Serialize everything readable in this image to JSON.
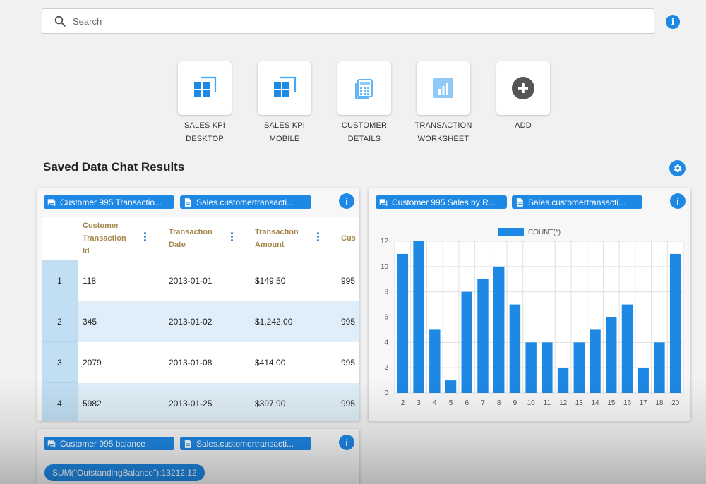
{
  "search": {
    "placeholder": "Search"
  },
  "tiles": [
    {
      "line1": "SALES KPI",
      "line2": "DESKTOP",
      "icon": "dashboard-grid-icon"
    },
    {
      "line1": "SALES KPI",
      "line2": "MOBILE",
      "icon": "dashboard-grid-icon"
    },
    {
      "line1": "CUSTOMER",
      "line2": "DETAILS",
      "icon": "calculator-table-icon"
    },
    {
      "line1": "TRANSACTION",
      "line2": "WORKSHEET",
      "icon": "bar-chart-icon"
    },
    {
      "line1": "ADD",
      "line2": "",
      "icon": "add-circle-icon"
    }
  ],
  "section": {
    "title": "Saved Data Chat Results"
  },
  "cards": {
    "transactions": {
      "chat_chip": "Customer 995 Transactio...",
      "source_chip": "Sales.customertransacti...",
      "columns": [
        {
          "l1": "Customer",
          "l2": "Transaction",
          "l3": "Id"
        },
        {
          "l1": "Transaction",
          "l2": "Date",
          "l3": ""
        },
        {
          "l1": "Transaction",
          "l2": "Amount",
          "l3": ""
        },
        {
          "l1": "Cus",
          "l2": "",
          "l3": ""
        }
      ],
      "rows": [
        {
          "n": "1",
          "id": "118",
          "date": "2013-01-01",
          "amount": "$149.50",
          "cust": "995"
        },
        {
          "n": "2",
          "id": "345",
          "date": "2013-01-02",
          "amount": "$1,242.00",
          "cust": "995"
        },
        {
          "n": "3",
          "id": "2079",
          "date": "2013-01-08",
          "amount": "$414.00",
          "cust": "995"
        },
        {
          "n": "4",
          "id": "5982",
          "date": "2013-01-25",
          "amount": "$397.90",
          "cust": "995"
        }
      ]
    },
    "sales_chart": {
      "chat_chip": "Customer 995 Sales by R...",
      "source_chip": "Sales.customertransacti..."
    },
    "balance": {
      "chat_chip": "Customer 995 balance",
      "source_chip": "Sales.customertransacti...",
      "result": "SUM(\"OutstandingBalance\"):13212.12"
    }
  },
  "chart_data": {
    "type": "bar",
    "categories": [
      "2",
      "3",
      "4",
      "5",
      "6",
      "7",
      "8",
      "9",
      "10",
      "11",
      "12",
      "13",
      "14",
      "15",
      "16",
      "17",
      "18",
      "20"
    ],
    "series": [
      {
        "name": "COUNT(*)",
        "values": [
          11,
          12,
          5,
          1,
          8,
          9,
          10,
          7,
          4,
          4,
          2,
          4,
          5,
          6,
          7,
          2,
          4,
          11
        ]
      }
    ],
    "ylim": [
      0,
      12
    ],
    "yticks": [
      0,
      2,
      4,
      6,
      8,
      10,
      12
    ],
    "grid": true,
    "legend": "top-center",
    "color": "#1e88e5"
  },
  "colors": {
    "accent": "#1e88e5",
    "header_text": "#a4864a",
    "row_alt": "#dfeef8",
    "row_index": "#c2def2"
  }
}
